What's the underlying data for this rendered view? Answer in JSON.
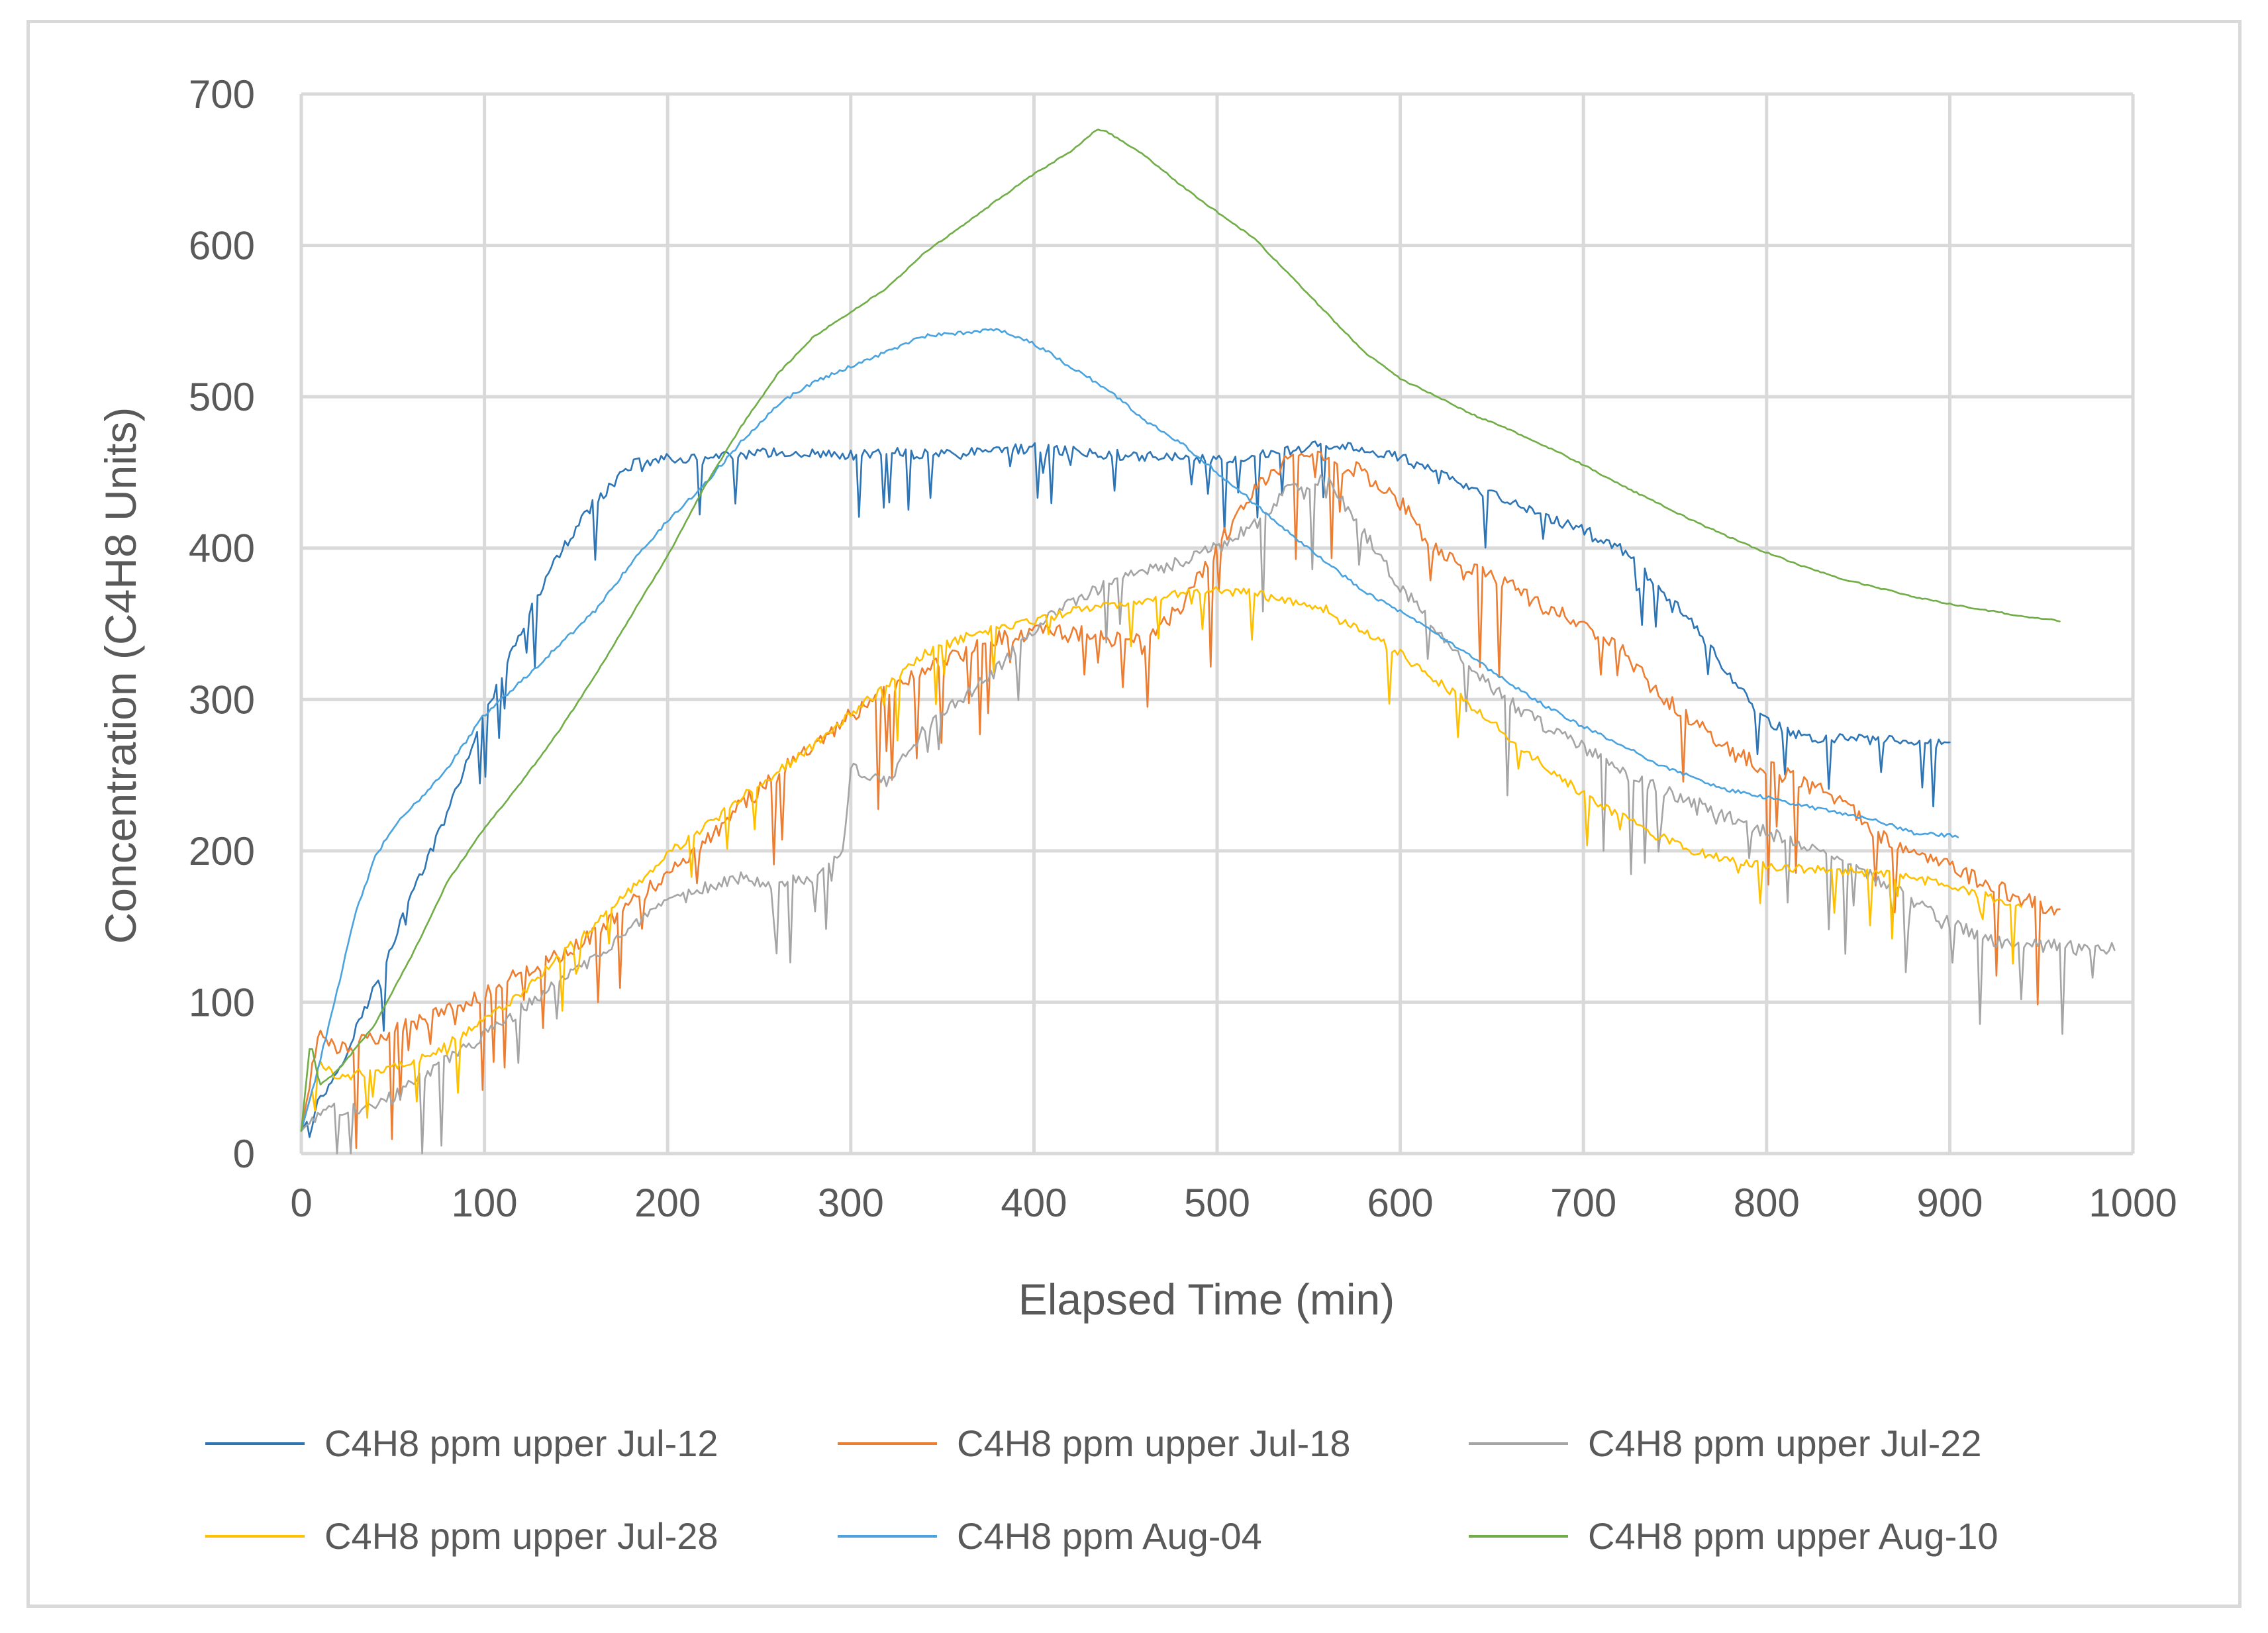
{
  "chart_data": {
    "type": "line",
    "title": "",
    "xlabel": "Elapsed Time (min)",
    "ylabel": "Concentration (C4H8 Units)",
    "xlim": [
      0,
      1000
    ],
    "ylim": [
      0,
      700
    ],
    "x_ticks": [
      "0",
      "100",
      "200",
      "300",
      "400",
      "500",
      "600",
      "700",
      "800",
      "900",
      "1000"
    ],
    "y_ticks": [
      "0",
      "100",
      "200",
      "300",
      "400",
      "500",
      "600",
      "700"
    ],
    "grid": true,
    "legend_position": "bottom",
    "series": [
      {
        "name": "C4H8 ppm upper Jul-12",
        "color": "#2e75b6",
        "noise": 14,
        "points": [
          [
            0,
            15
          ],
          [
            20,
            55
          ],
          [
            40,
            110
          ],
          [
            60,
            170
          ],
          [
            80,
            225
          ],
          [
            100,
            290
          ],
          [
            120,
            345
          ],
          [
            140,
            395
          ],
          [
            160,
            430
          ],
          [
            180,
            455
          ],
          [
            200,
            460
          ],
          [
            220,
            458
          ],
          [
            240,
            462
          ],
          [
            260,
            463
          ],
          [
            280,
            463
          ],
          [
            300,
            461
          ],
          [
            320,
            463
          ],
          [
            340,
            462
          ],
          [
            360,
            462
          ],
          [
            380,
            465
          ],
          [
            400,
            466
          ],
          [
            420,
            464
          ],
          [
            440,
            462
          ],
          [
            460,
            461
          ],
          [
            480,
            460
          ],
          [
            500,
            458
          ],
          [
            520,
            460
          ],
          [
            540,
            465
          ],
          [
            560,
            468
          ],
          [
            580,
            466
          ],
          [
            600,
            460
          ],
          [
            620,
            450
          ],
          [
            640,
            440
          ],
          [
            660,
            430
          ],
          [
            680,
            420
          ],
          [
            700,
            412
          ],
          [
            720,
            400
          ],
          [
            740,
            375
          ],
          [
            760,
            350
          ],
          [
            780,
            315
          ],
          [
            800,
            285
          ],
          [
            820,
            275
          ],
          [
            840,
            275
          ],
          [
            860,
            273
          ],
          [
            880,
            272
          ],
          [
            900,
            270
          ]
        ]
      },
      {
        "name": "C4H8 ppm upper Jul-18",
        "color": "#ed7d31",
        "noise": 22,
        "points": [
          [
            0,
            15
          ],
          [
            10,
            82
          ],
          [
            20,
            70
          ],
          [
            40,
            75
          ],
          [
            60,
            85
          ],
          [
            80,
            95
          ],
          [
            100,
            105
          ],
          [
            120,
            120
          ],
          [
            140,
            130
          ],
          [
            160,
            145
          ],
          [
            180,
            165
          ],
          [
            200,
            185
          ],
          [
            220,
            205
          ],
          [
            240,
            230
          ],
          [
            260,
            250
          ],
          [
            280,
            270
          ],
          [
            300,
            290
          ],
          [
            320,
            305
          ],
          [
            340,
            320
          ],
          [
            360,
            330
          ],
          [
            380,
            340
          ],
          [
            400,
            345
          ],
          [
            420,
            345
          ],
          [
            440,
            340
          ],
          [
            460,
            340
          ],
          [
            480,
            360
          ],
          [
            500,
            400
          ],
          [
            520,
            440
          ],
          [
            540,
            460
          ],
          [
            560,
            460
          ],
          [
            580,
            450
          ],
          [
            600,
            430
          ],
          [
            620,
            400
          ],
          [
            640,
            385
          ],
          [
            660,
            375
          ],
          [
            680,
            360
          ],
          [
            700,
            350
          ],
          [
            720,
            335
          ],
          [
            740,
            305
          ],
          [
            760,
            285
          ],
          [
            780,
            265
          ],
          [
            800,
            255
          ],
          [
            820,
            245
          ],
          [
            840,
            235
          ],
          [
            860,
            210
          ],
          [
            880,
            200
          ],
          [
            900,
            190
          ],
          [
            920,
            178
          ],
          [
            940,
            168
          ],
          [
            960,
            158
          ]
        ]
      },
      {
        "name": "C4H8 ppm upper Jul-22",
        "color": "#a5a5a5",
        "noise": 18,
        "points": [
          [
            0,
            15
          ],
          [
            10,
            28
          ],
          [
            40,
            30
          ],
          [
            60,
            45
          ],
          [
            80,
            62
          ],
          [
            100,
            78
          ],
          [
            120,
            95
          ],
          [
            140,
            112
          ],
          [
            160,
            130
          ],
          [
            180,
            148
          ],
          [
            200,
            165
          ],
          [
            220,
            175
          ],
          [
            240,
            183
          ],
          [
            260,
            178
          ],
          [
            280,
            183
          ],
          [
            295,
            195
          ],
          [
            300,
            255
          ],
          [
            320,
            245
          ],
          [
            340,
            280
          ],
          [
            360,
            300
          ],
          [
            380,
            320
          ],
          [
            400,
            345
          ],
          [
            420,
            365
          ],
          [
            440,
            375
          ],
          [
            460,
            385
          ],
          [
            480,
            390
          ],
          [
            500,
            400
          ],
          [
            520,
            415
          ],
          [
            540,
            440
          ],
          [
            560,
            445
          ],
          [
            580,
            410
          ],
          [
            600,
            375
          ],
          [
            620,
            345
          ],
          [
            640,
            318
          ],
          [
            660,
            298
          ],
          [
            680,
            282
          ],
          [
            700,
            268
          ],
          [
            720,
            253
          ],
          [
            740,
            242
          ],
          [
            760,
            232
          ],
          [
            780,
            222
          ],
          [
            800,
            212
          ],
          [
            820,
            203
          ],
          [
            840,
            192
          ],
          [
            860,
            182
          ],
          [
            880,
            167
          ],
          [
            900,
            152
          ],
          [
            920,
            142
          ],
          [
            940,
            138
          ],
          [
            960,
            137
          ],
          [
            980,
            136
          ],
          [
            990,
            135
          ]
        ]
      },
      {
        "name": "C4H8 ppm upper Jul-28",
        "color": "#ffc000",
        "noise": 12,
        "points": [
          [
            0,
            15
          ],
          [
            10,
            60
          ],
          [
            20,
            50
          ],
          [
            40,
            55
          ],
          [
            60,
            60
          ],
          [
            80,
            72
          ],
          [
            100,
            88
          ],
          [
            120,
            105
          ],
          [
            140,
            130
          ],
          [
            160,
            150
          ],
          [
            180,
            175
          ],
          [
            200,
            198
          ],
          [
            220,
            215
          ],
          [
            240,
            235
          ],
          [
            260,
            252
          ],
          [
            280,
            270
          ],
          [
            300,
            290
          ],
          [
            320,
            310
          ],
          [
            340,
            330
          ],
          [
            360,
            340
          ],
          [
            380,
            348
          ],
          [
            400,
            352
          ],
          [
            420,
            358
          ],
          [
            440,
            362
          ],
          [
            460,
            366
          ],
          [
            480,
            370
          ],
          [
            500,
            372
          ],
          [
            520,
            370
          ],
          [
            540,
            365
          ],
          [
            560,
            360
          ],
          [
            580,
            345
          ],
          [
            600,
            330
          ],
          [
            620,
            312
          ],
          [
            640,
            295
          ],
          [
            660,
            275
          ],
          [
            680,
            255
          ],
          [
            700,
            238
          ],
          [
            720,
            223
          ],
          [
            740,
            210
          ],
          [
            760,
            200
          ],
          [
            780,
            193
          ],
          [
            800,
            190
          ],
          [
            820,
            188
          ],
          [
            840,
            187
          ],
          [
            860,
            185
          ],
          [
            880,
            182
          ],
          [
            900,
            177
          ],
          [
            920,
            170
          ],
          [
            940,
            162
          ]
        ]
      },
      {
        "name": "C4H8 ppm Aug-04",
        "color": "#4aa3df",
        "noise": 5,
        "points": [
          [
            0,
            15
          ],
          [
            10,
            60
          ],
          [
            20,
            110
          ],
          [
            30,
            160
          ],
          [
            40,
            195
          ],
          [
            50,
            215
          ],
          [
            60,
            228
          ],
          [
            80,
            255
          ],
          [
            100,
            290
          ],
          [
            120,
            312
          ],
          [
            140,
            335
          ],
          [
            160,
            358
          ],
          [
            180,
            390
          ],
          [
            200,
            418
          ],
          [
            220,
            442
          ],
          [
            240,
            470
          ],
          [
            260,
            495
          ],
          [
            280,
            510
          ],
          [
            300,
            520
          ],
          [
            320,
            530
          ],
          [
            340,
            540
          ],
          [
            360,
            542
          ],
          [
            380,
            545
          ],
          [
            400,
            535
          ],
          [
            420,
            520
          ],
          [
            440,
            505
          ],
          [
            460,
            485
          ],
          [
            480,
            470
          ],
          [
            500,
            450
          ],
          [
            520,
            430
          ],
          [
            540,
            410
          ],
          [
            560,
            390
          ],
          [
            580,
            372
          ],
          [
            600,
            358
          ],
          [
            620,
            343
          ],
          [
            640,
            327
          ],
          [
            660,
            310
          ],
          [
            680,
            295
          ],
          [
            700,
            282
          ],
          [
            720,
            270
          ],
          [
            740,
            258
          ],
          [
            760,
            248
          ],
          [
            780,
            240
          ],
          [
            800,
            235
          ],
          [
            820,
            230
          ],
          [
            840,
            225
          ],
          [
            860,
            220
          ],
          [
            880,
            212
          ],
          [
            900,
            210
          ],
          [
            905,
            210
          ]
        ]
      },
      {
        "name": "C4H8 ppm upper Aug-10",
        "color": "#70ad47",
        "noise": 2,
        "points": [
          [
            0,
            15
          ],
          [
            5,
            75
          ],
          [
            10,
            45
          ],
          [
            20,
            55
          ],
          [
            40,
            85
          ],
          [
            60,
            130
          ],
          [
            80,
            180
          ],
          [
            100,
            215
          ],
          [
            120,
            245
          ],
          [
            140,
            278
          ],
          [
            160,
            315
          ],
          [
            180,
            355
          ],
          [
            200,
            395
          ],
          [
            220,
            440
          ],
          [
            240,
            480
          ],
          [
            260,
            515
          ],
          [
            280,
            540
          ],
          [
            300,
            556
          ],
          [
            320,
            572
          ],
          [
            340,
            595
          ],
          [
            360,
            612
          ],
          [
            380,
            630
          ],
          [
            400,
            647
          ],
          [
            420,
            662
          ],
          [
            435,
            677
          ],
          [
            440,
            675
          ],
          [
            460,
            660
          ],
          [
            480,
            640
          ],
          [
            500,
            622
          ],
          [
            520,
            605
          ],
          [
            540,
            580
          ],
          [
            560,
            555
          ],
          [
            580,
            530
          ],
          [
            600,
            512
          ],
          [
            620,
            500
          ],
          [
            640,
            488
          ],
          [
            660,
            478
          ],
          [
            680,
            467
          ],
          [
            700,
            455
          ],
          [
            720,
            442
          ],
          [
            740,
            430
          ],
          [
            760,
            418
          ],
          [
            780,
            407
          ],
          [
            800,
            397
          ],
          [
            820,
            388
          ],
          [
            840,
            380
          ],
          [
            860,
            374
          ],
          [
            880,
            368
          ],
          [
            900,
            363
          ],
          [
            920,
            359
          ],
          [
            940,
            355
          ],
          [
            960,
            352
          ]
        ]
      }
    ]
  }
}
